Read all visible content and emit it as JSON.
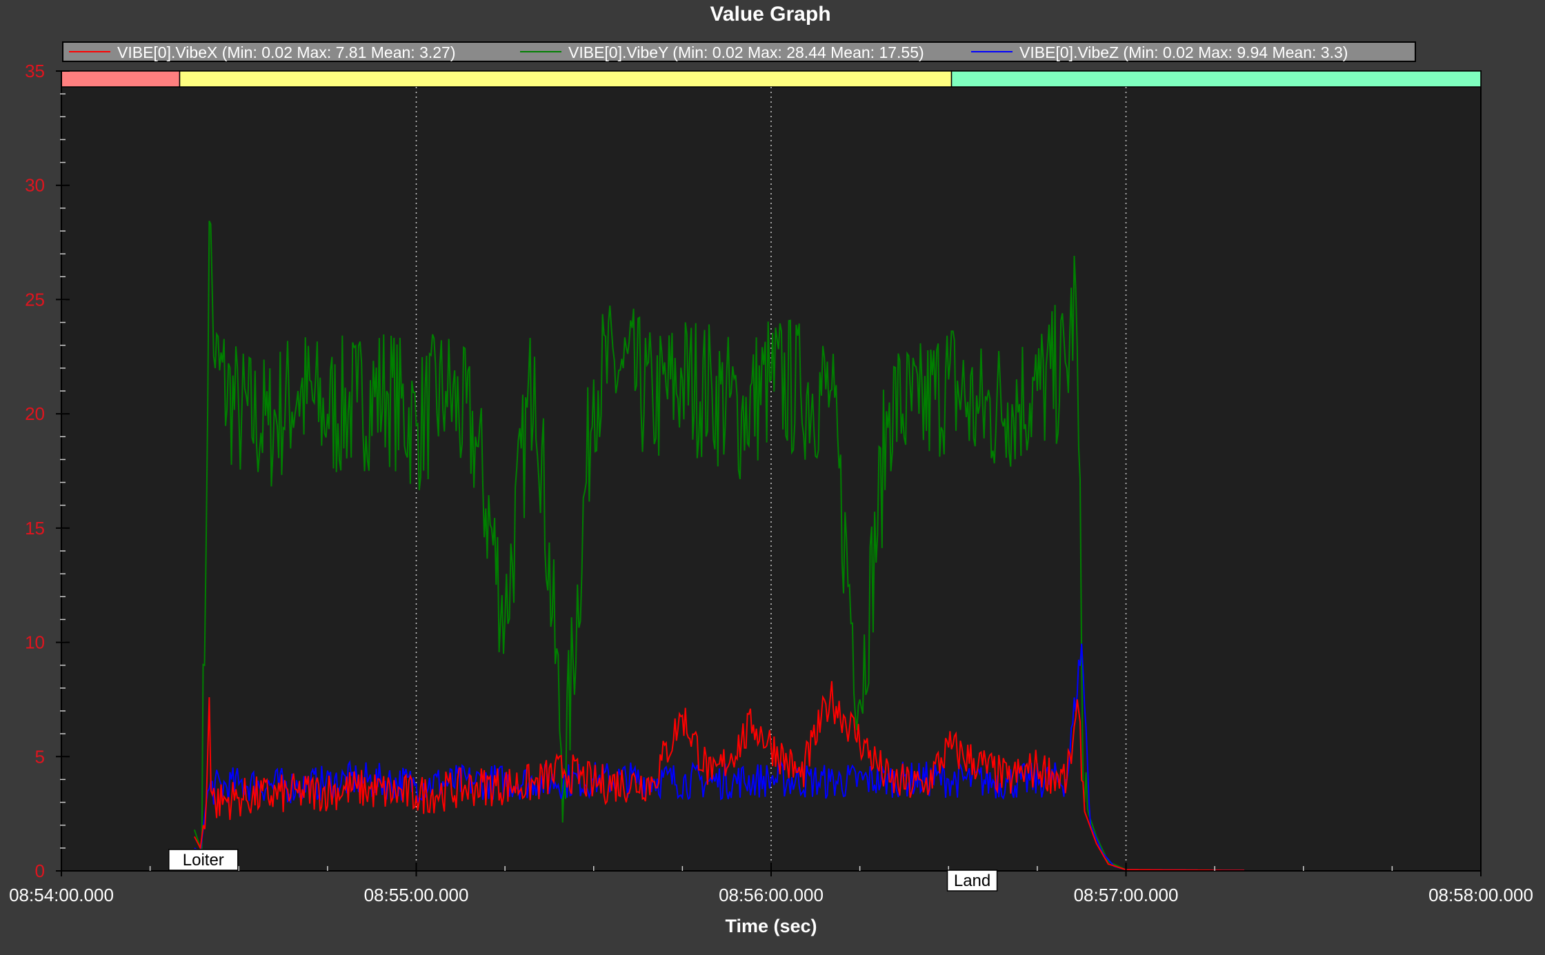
{
  "window": {
    "title": "Value Graph"
  },
  "colors": {
    "background": "#3a3a3a",
    "plot_area": "#1f1f1f",
    "ytick_text": "#e0141e",
    "xtick_text": "#ffffff",
    "legend_bg": "#8a8a8a",
    "mode_loiter_low": "#ff7f7f",
    "mode_loiter": "#ffff80",
    "mode_land": "#7fffbf"
  },
  "chart_data": {
    "type": "line",
    "title": "Value Graph",
    "xlabel": "Time (sec)",
    "ylabel": "",
    "x_unit": "time of day",
    "xlim": [
      "08:54:00.000",
      "08:58:00.000"
    ],
    "ylim": [
      0,
      35
    ],
    "x_ticks": [
      "08:54:00.000",
      "08:55:00.000",
      "08:56:00.000",
      "08:57:00.000",
      "08:58:00.000"
    ],
    "y_ticks": [
      0,
      5,
      10,
      15,
      20,
      25,
      30,
      35
    ],
    "grid": {
      "x": true,
      "y": false,
      "style": "dotted"
    },
    "legend_position": "top",
    "legend": [
      {
        "label": "VIBE[0].VibeX  (Min: 0.02 Max: 7.81 Mean: 3.27)",
        "color": "#ff0000"
      },
      {
        "label": "VIBE[0].VibeY  (Min: 0.02 Max: 28.44 Mean: 17.55)",
        "color": "#008000"
      },
      {
        "label": "VIBE[0].VibeZ  (Min: 0.02 Max: 9.94 Mean: 3.3)",
        "color": "#0000ff"
      }
    ],
    "mode_bands": [
      {
        "start": "08:54:00.000",
        "end": "08:54:20.000",
        "color": "#ff7f7f"
      },
      {
        "start": "08:54:20.000",
        "end": "08:56:30.500",
        "color": "#ffff80"
      },
      {
        "start": "08:56:30.500",
        "end": "08:58:00.000",
        "color": "#7fffbf"
      }
    ],
    "annotations": [
      {
        "text": "Loiter",
        "x": "08:54:24.000",
        "y": 0
      },
      {
        "text": "Land",
        "x": "08:56:34.000",
        "y": 0
      }
    ],
    "series": [
      {
        "name": "VIBE[0].VibeX",
        "color": "#ff0000",
        "x": [
          "08:54:22.500",
          "08:54:23.500",
          "08:54:24.500",
          "08:54:25.000",
          "08:54:25.300",
          "08:54:26.000",
          "08:54:30.000",
          "08:54:40.000",
          "08:54:50.000",
          "08:55:00.000",
          "08:55:10.000",
          "08:55:20.000",
          "08:55:25.000",
          "08:55:30.000",
          "08:55:40.000",
          "08:55:45.000",
          "08:55:50.000",
          "08:55:57.000",
          "08:56:05.000",
          "08:56:10.000",
          "08:56:20.000",
          "08:56:26.000",
          "08:56:30.000",
          "08:56:40.000",
          "08:56:45.000",
          "08:56:50.000",
          "08:56:52.000",
          "08:56:53.000",
          "08:56:55.000",
          "08:56:57.000",
          "08:57:00.000",
          "08:57:20.000"
        ],
        "y": [
          1.5,
          1.0,
          3.0,
          7.6,
          3.5,
          3.0,
          3.2,
          3.4,
          3.6,
          3.3,
          3.7,
          3.8,
          4.4,
          3.8,
          3.9,
          6.8,
          4.0,
          6.4,
          4.1,
          7.6,
          3.9,
          3.7,
          5.4,
          4.0,
          4.5,
          4.0,
          7.0,
          2.6,
          1.2,
          0.3,
          0.05,
          0.02
        ]
      },
      {
        "name": "VIBE[0].VibeY",
        "color": "#008000",
        "x": [
          "08:54:22.500",
          "08:54:23.500",
          "08:54:24.200",
          "08:54:25.000",
          "08:54:26.000",
          "08:54:30.000",
          "08:54:35.000",
          "08:54:40.000",
          "08:54:45.000",
          "08:54:50.000",
          "08:54:55.000",
          "08:55:00.000",
          "08:55:05.000",
          "08:55:10.000",
          "08:55:15.000",
          "08:55:20.000",
          "08:55:25.000",
          "08:55:30.000",
          "08:55:35.000",
          "08:55:40.000",
          "08:55:45.000",
          "08:55:50.000",
          "08:55:55.000",
          "08:56:00.000",
          "08:56:05.000",
          "08:56:10.000",
          "08:56:15.000",
          "08:56:20.000",
          "08:56:25.000",
          "08:56:30.000",
          "08:56:35.000",
          "08:56:40.000",
          "08:56:45.000",
          "08:56:50.000",
          "08:56:51.500",
          "08:56:53.000",
          "08:56:55.000",
          "08:56:57.000",
          "08:57:00.000",
          "08:57:20.000"
        ],
        "y": [
          1.8,
          1.0,
          9.0,
          28.44,
          22.0,
          20.0,
          19.5,
          21.0,
          20.0,
          20.5,
          21.0,
          19.5,
          21.0,
          19.0,
          11.0,
          22.5,
          4.0,
          21.5,
          22.0,
          20.5,
          21.5,
          21.0,
          20.0,
          21.5,
          21.0,
          21.0,
          7.5,
          20.5,
          20.0,
          21.5,
          20.0,
          20.5,
          21.0,
          22.0,
          25.5,
          3.0,
          1.5,
          0.4,
          0.05,
          0.02
        ]
      },
      {
        "name": "VIBE[0].VibeZ",
        "color": "#0000ff",
        "x": [
          "08:54:22.500",
          "08:54:23.500",
          "08:54:24.500",
          "08:54:25.000",
          "08:54:30.000",
          "08:54:40.000",
          "08:54:50.000",
          "08:55:00.000",
          "08:55:10.000",
          "08:55:20.000",
          "08:55:30.000",
          "08:55:40.000",
          "08:55:50.000",
          "08:56:00.000",
          "08:56:10.000",
          "08:56:20.000",
          "08:56:30.000",
          "08:56:40.000",
          "08:56:50.000",
          "08:56:52.500",
          "08:56:54.000",
          "08:56:56.000",
          "08:56:58.000",
          "08:57:00.000",
          "08:57:20.000"
        ],
        "y": [
          1.0,
          0.8,
          3.0,
          3.6,
          3.8,
          3.7,
          4.0,
          3.8,
          3.9,
          3.9,
          4.0,
          4.0,
          3.9,
          4.0,
          3.9,
          4.0,
          4.0,
          3.9,
          4.0,
          9.94,
          2.0,
          0.8,
          0.2,
          0.05,
          0.02
        ]
      }
    ]
  }
}
